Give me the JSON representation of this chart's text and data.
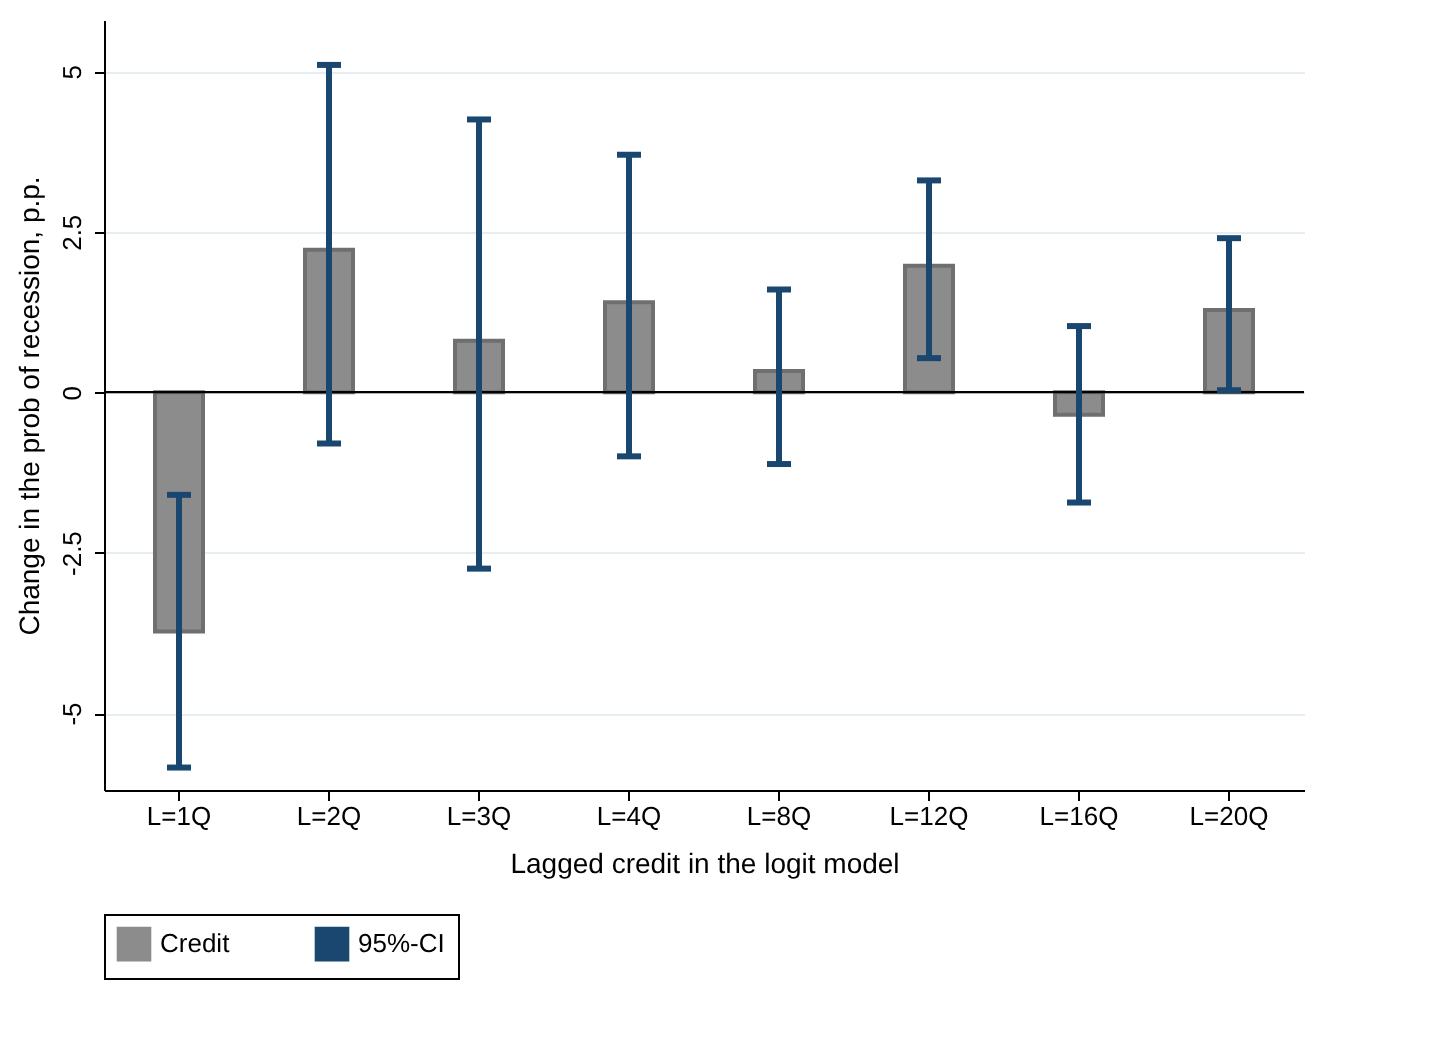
{
  "chart_data": {
    "type": "bar",
    "xlabel": "Lagged credit in the logit model",
    "ylabel": "Change in the prob of recession, p.p.",
    "categories": [
      "L=1Q",
      "L=2Q",
      "L=3Q",
      "L=4Q",
      "L=8Q",
      "L=12Q",
      "L=16Q",
      "L=20Q"
    ],
    "series": [
      {
        "name": "Credit",
        "color": "#8c8c8c",
        "values": [
          -3.73,
          2.22,
          0.8,
          1.4,
          0.33,
          1.97,
          -0.35,
          1.28
        ],
        "errors": [
          [
            -5.85,
            -1.6
          ],
          [
            -0.8,
            5.1
          ],
          [
            -2.75,
            4.25
          ],
          [
            -1.0,
            3.7
          ],
          [
            -1.12,
            1.6
          ],
          [
            0.53,
            3.3
          ],
          [
            -1.72,
            1.03
          ],
          [
            0.03,
            2.4
          ]
        ]
      }
    ],
    "annotations": [
      "95%-CI"
    ],
    "ylim": [
      -6.2,
      5.8
    ],
    "yticks": [
      {
        "value": -5,
        "label": "-5"
      },
      {
        "value": -2.5,
        "label": "-2.5"
      },
      0,
      2.5,
      5
    ],
    "ref_lines": [
      {
        "axis": "y",
        "value": 0,
        "color": "#000000"
      }
    ],
    "grid": "y",
    "legend": "bottom"
  }
}
